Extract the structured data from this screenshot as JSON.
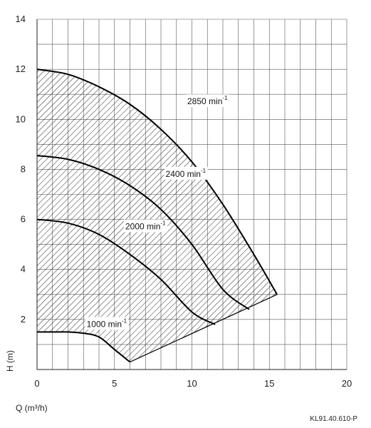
{
  "chart_data": {
    "type": "line",
    "xlabel": "Q (m³/h)",
    "ylabel": "H (m)",
    "xlim": [
      0,
      20
    ],
    "ylim": [
      0,
      14
    ],
    "x_ticks": [
      "0",
      "5",
      "10",
      "15",
      "20"
    ],
    "y_ticks": [
      "2",
      "4",
      "6",
      "8",
      "10",
      "12",
      "14"
    ],
    "grid": true,
    "series": [
      {
        "name": "1000 min",
        "label_text": "1000 min",
        "label_exp": "-1",
        "points": [
          [
            0,
            1.5
          ],
          [
            1,
            1.5
          ],
          [
            2,
            1.5
          ],
          [
            3,
            1.45
          ],
          [
            4,
            1.3
          ],
          [
            5,
            0.8
          ],
          [
            6,
            0.3
          ]
        ]
      },
      {
        "name": "2000 min",
        "label_text": "2000 min",
        "label_exp": "-1",
        "points": [
          [
            0,
            6.0
          ],
          [
            2,
            5.85
          ],
          [
            4,
            5.4
          ],
          [
            6,
            4.6
          ],
          [
            8,
            3.6
          ],
          [
            10,
            2.3
          ],
          [
            11.5,
            1.8
          ]
        ]
      },
      {
        "name": "2400 min",
        "label_text": "2400 min",
        "label_exp": "-1",
        "points": [
          [
            0,
            8.55
          ],
          [
            2,
            8.4
          ],
          [
            4,
            8.0
          ],
          [
            6,
            7.35
          ],
          [
            8,
            6.4
          ],
          [
            10,
            5.0
          ],
          [
            12,
            3.2
          ],
          [
            13.7,
            2.4
          ]
        ]
      },
      {
        "name": "2850 min",
        "label_text": "2850 min",
        "label_exp": "-1",
        "points": [
          [
            0,
            12.0
          ],
          [
            2,
            11.8
          ],
          [
            4,
            11.3
          ],
          [
            6,
            10.6
          ],
          [
            8,
            9.6
          ],
          [
            10,
            8.3
          ],
          [
            12,
            6.6
          ],
          [
            14,
            4.6
          ],
          [
            15.5,
            3.0
          ]
        ]
      }
    ],
    "lower_boundary": [
      [
        6,
        0.3
      ],
      [
        15.5,
        3.0
      ]
    ],
    "reference": "KL91.40.610-P"
  }
}
